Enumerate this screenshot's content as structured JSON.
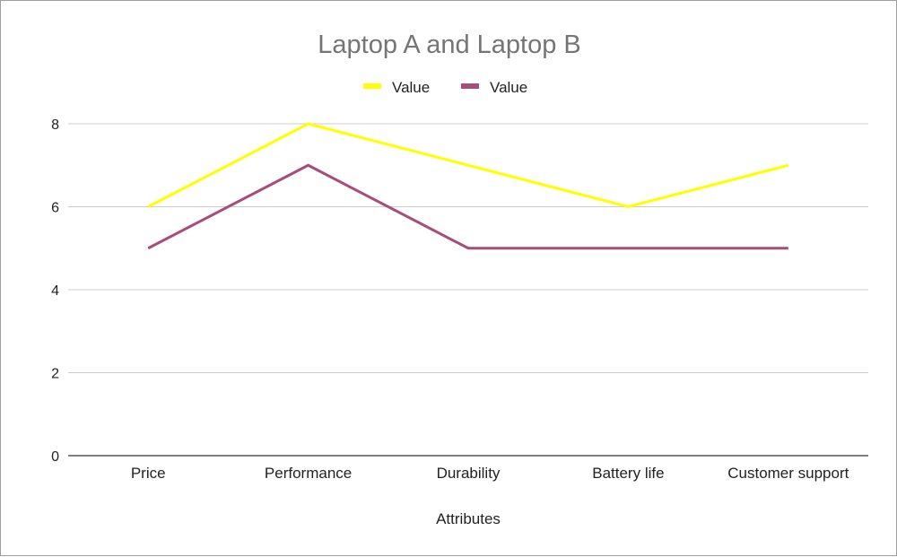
{
  "chart_data": {
    "type": "line",
    "title": "Laptop A and Laptop B",
    "xlabel": "Attributes",
    "ylabel": "",
    "categories": [
      "Price",
      "Performance",
      "Durability",
      "Battery life",
      "Customer support"
    ],
    "series": [
      {
        "name": "Value",
        "color": "#ffff00",
        "values": [
          6,
          8,
          7,
          6,
          7
        ]
      },
      {
        "name": "Value",
        "color": "#a64d79",
        "values": [
          5,
          7,
          5,
          5,
          5
        ]
      }
    ],
    "ylim": [
      0,
      8
    ],
    "yticks": [
      0,
      2,
      4,
      6,
      8
    ],
    "grid": true,
    "legend": "top"
  }
}
